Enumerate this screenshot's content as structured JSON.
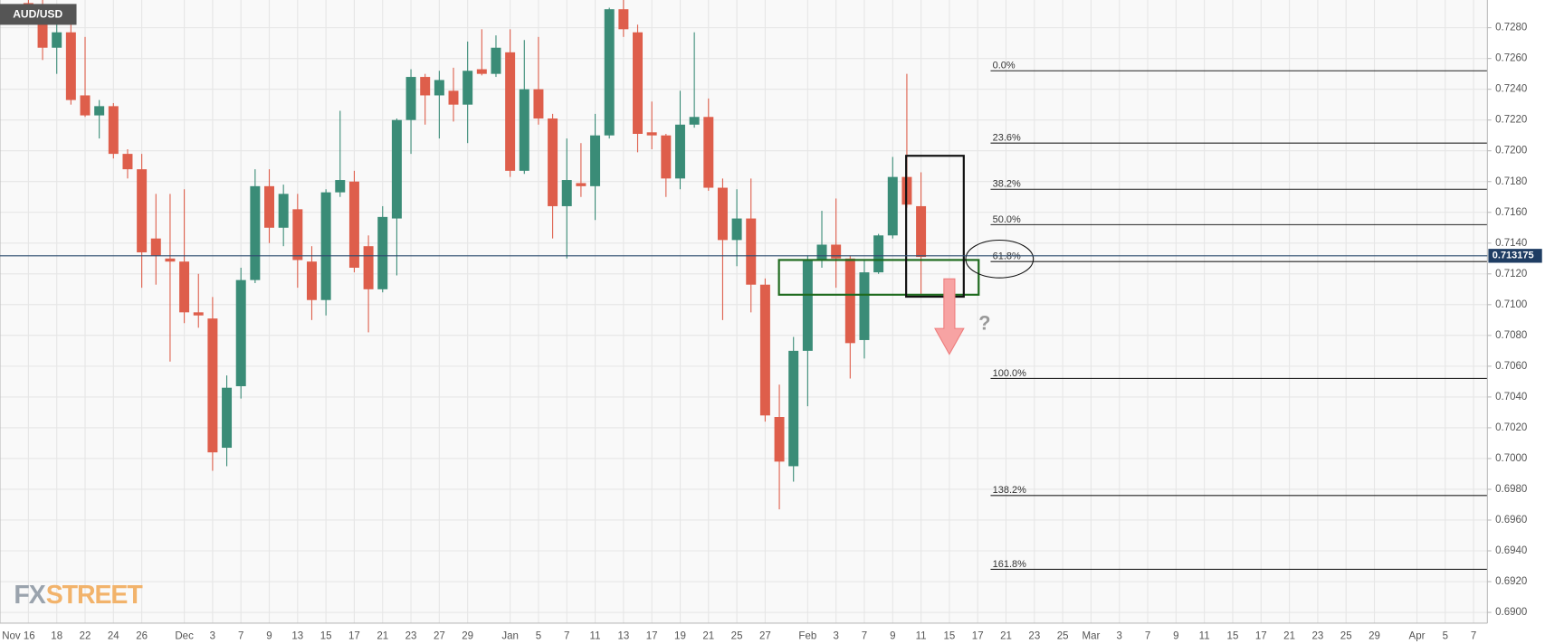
{
  "chart_data": {
    "type": "candlestick",
    "symbol_label": "AUD/USD",
    "logo": [
      "FX",
      "STREET"
    ],
    "annotations": [
      "?"
    ],
    "last_price": 0.713175,
    "up_color": "#3a8c77",
    "down_color": "#de5e4b",
    "grid": true,
    "categories": [
      "Nov 16",
      null,
      "18",
      null,
      "22",
      null,
      "24",
      null,
      "26",
      null,
      null,
      "Dec",
      null,
      "3",
      null,
      "7",
      null,
      "9",
      null,
      "13",
      null,
      "15",
      null,
      "17",
      null,
      "21",
      null,
      "23",
      null,
      "27",
      null,
      "29",
      null,
      null,
      "Jan",
      null,
      "5",
      null,
      "7",
      null,
      "11",
      null,
      "13",
      null,
      "17",
      null,
      "19",
      null,
      "21",
      null,
      "25",
      null,
      "27",
      null,
      null,
      "Feb",
      null,
      "3",
      null,
      "7",
      null,
      "9",
      null,
      "11",
      null,
      "15",
      null,
      "17",
      null,
      "21",
      null,
      "23",
      null,
      "25",
      null,
      "Mar",
      null,
      "3",
      null,
      "7",
      null,
      "9",
      null,
      "11",
      null,
      "15",
      null,
      "17",
      null,
      "21",
      null,
      "23",
      null,
      "25",
      null,
      "29",
      null,
      null,
      "Apr",
      null,
      "5",
      null,
      "7"
    ],
    "series": [
      {
        "name": "AUD/USD",
        "open": [
          0.7296,
          0.7293,
          0.7267,
          0.7277,
          0.7236,
          0.7223,
          0.7229,
          0.7198,
          0.7188,
          0.7143,
          0.713,
          0.7128,
          0.7095,
          0.7091,
          0.7007,
          0.7047,
          0.7116,
          0.7177,
          0.715,
          0.7162,
          0.7128,
          0.7103,
          0.7173,
          0.718,
          0.7138,
          0.711,
          0.7156,
          0.722,
          0.7248,
          0.7236,
          0.7239,
          0.723,
          0.7253,
          0.725,
          0.7264,
          0.7187,
          0.724,
          0.7221,
          0.7164,
          0.7179,
          0.7177,
          0.721,
          0.7292,
          0.7277,
          0.7212,
          0.721,
          0.7182,
          0.7217,
          0.7222,
          0.7176,
          0.7142,
          0.7156,
          0.7113,
          0.7027,
          0.6995,
          0.707,
          0.7129,
          0.7139,
          0.713,
          0.7077,
          0.7121,
          0.7145,
          0.7183,
          0.7164,
          null,
          null,
          null,
          null,
          null,
          null,
          null,
          null,
          null,
          null,
          null,
          null,
          null,
          null,
          null,
          null,
          null,
          null,
          null,
          null,
          null,
          null,
          null,
          null,
          null,
          null,
          null,
          null,
          null,
          null,
          null,
          null,
          null,
          null,
          null,
          null,
          null,
          null,
          null
        ],
        "high": [
          0.7298,
          0.7298,
          0.7286,
          0.7285,
          0.7274,
          0.7233,
          0.7231,
          0.7201,
          0.7198,
          0.7172,
          0.7172,
          0.7175,
          0.712,
          0.7105,
          0.7054,
          0.7124,
          0.7188,
          0.7188,
          0.7178,
          0.7172,
          0.7138,
          0.7175,
          0.7226,
          0.7187,
          0.7145,
          0.7164,
          0.7221,
          0.7253,
          0.725,
          0.7252,
          0.7254,
          0.7271,
          0.7279,
          0.7275,
          0.7279,
          0.7272,
          0.7274,
          0.7224,
          0.7208,
          0.7205,
          0.7224,
          0.7293,
          0.7298,
          0.7282,
          0.7232,
          0.7211,
          0.7239,
          0.7277,
          0.7234,
          0.7182,
          0.7175,
          0.7182,
          0.7117,
          0.7048,
          0.7079,
          0.7132,
          0.7161,
          0.7169,
          0.7132,
          0.7129,
          0.7146,
          0.7196,
          0.725,
          0.7186,
          null,
          null,
          null,
          null,
          null,
          null,
          null,
          null,
          null,
          null,
          null,
          null,
          null,
          null,
          null,
          null,
          null,
          null,
          null,
          null,
          null,
          null,
          null,
          null,
          null,
          null,
          null,
          null,
          null,
          null,
          null,
          null,
          null,
          null,
          null,
          null,
          null,
          null,
          null
        ],
        "low": [
          0.7288,
          0.7259,
          0.725,
          0.723,
          0.7222,
          0.7208,
          0.7195,
          0.7182,
          0.7111,
          0.7113,
          0.7063,
          0.7088,
          0.7085,
          0.6992,
          0.6995,
          0.7039,
          0.7114,
          0.714,
          0.7138,
          0.7111,
          0.709,
          0.7093,
          0.717,
          0.7121,
          0.7082,
          0.7108,
          0.7119,
          0.7198,
          0.7217,
          0.7208,
          0.7219,
          0.7205,
          0.7249,
          0.7248,
          0.7183,
          0.7185,
          0.7217,
          0.7143,
          0.713,
          0.717,
          0.7155,
          0.7208,
          0.7274,
          0.7199,
          0.7201,
          0.717,
          0.7175,
          0.7215,
          0.7174,
          0.709,
          0.7125,
          0.7095,
          0.7024,
          0.6967,
          0.6985,
          0.7034,
          0.7124,
          0.7111,
          0.7052,
          0.7065,
          0.712,
          0.7143,
          0.7163,
          0.7107,
          null,
          null,
          null,
          null,
          null,
          null,
          null,
          null,
          null,
          null,
          null,
          null,
          null,
          null,
          null,
          null,
          null,
          null,
          null,
          null,
          null,
          null,
          null,
          null,
          null,
          null,
          null,
          null,
          null,
          null,
          null,
          null,
          null,
          null,
          null,
          null,
          null,
          null,
          null
        ],
        "close": [
          0.7292,
          0.7267,
          0.7277,
          0.7233,
          0.7223,
          0.7229,
          0.7198,
          0.7188,
          0.7134,
          0.7132,
          0.7128,
          0.7095,
          0.7093,
          0.7004,
          0.7046,
          0.7116,
          0.7177,
          0.715,
          0.7172,
          0.7129,
          0.7103,
          0.7173,
          0.7181,
          0.7124,
          0.711,
          0.7157,
          0.722,
          0.7248,
          0.7236,
          0.7246,
          0.723,
          0.7252,
          0.725,
          0.7267,
          0.7187,
          0.724,
          0.7221,
          0.7164,
          0.7181,
          0.7177,
          0.721,
          0.7292,
          0.7279,
          0.7211,
          0.721,
          0.7182,
          0.7217,
          0.7222,
          0.7176,
          0.7142,
          0.7156,
          0.7113,
          0.7028,
          0.6998,
          0.707,
          0.7129,
          0.7139,
          0.713,
          0.7075,
          0.7121,
          0.7145,
          0.7183,
          0.7165,
          0.7131,
          null,
          null,
          null,
          null,
          null,
          null,
          null,
          null,
          null,
          null,
          null,
          null,
          null,
          null,
          null,
          null,
          null,
          null,
          null,
          null,
          null,
          null,
          null,
          null,
          null,
          null,
          null,
          null,
          null,
          null,
          null,
          null,
          null,
          null,
          null,
          null,
          null,
          null,
          null
        ]
      }
    ],
    "fibonacci": [
      {
        "value": 0.7252,
        "label": "0.0%"
      },
      {
        "value": 0.7205,
        "label": "23.6%"
      },
      {
        "value": 0.7175,
        "label": "38.2%"
      },
      {
        "value": 0.7152,
        "label": "50.0%"
      },
      {
        "value": 0.7128,
        "label": "61.8%"
      },
      {
        "value": 0.7052,
        "label": "100.0%"
      },
      {
        "value": 0.6976,
        "label": "138.2%"
      },
      {
        "value": 0.6928,
        "label": "161.8%"
      }
    ],
    "ylim": [
      0.6893,
      0.7298
    ],
    "yticks": [
      {
        "value": 0.69,
        "label": "0.6900"
      },
      {
        "value": 0.692,
        "label": "0.6920"
      },
      {
        "value": 0.694,
        "label": "0.6940"
      },
      {
        "value": 0.696,
        "label": "0.6960"
      },
      {
        "value": 0.698,
        "label": "0.6980"
      },
      {
        "value": 0.7,
        "label": "0.7000"
      },
      {
        "value": 0.702,
        "label": "0.7020"
      },
      {
        "value": 0.704,
        "label": "0.7040"
      },
      {
        "value": 0.706,
        "label": "0.7060"
      },
      {
        "value": 0.708,
        "label": "0.7080"
      },
      {
        "value": 0.71,
        "label": "0.7100"
      },
      {
        "value": 0.712,
        "label": "0.7120"
      },
      {
        "value": 0.714,
        "label": "0.7140"
      },
      {
        "value": 0.716,
        "label": "0.7160"
      },
      {
        "value": 0.718,
        "label": "0.7180"
      },
      {
        "value": 0.72,
        "label": "0.7200"
      },
      {
        "value": 0.722,
        "label": "0.7220"
      },
      {
        "value": 0.724,
        "label": "0.7240"
      },
      {
        "value": 0.726,
        "label": "0.7260"
      },
      {
        "value": 0.728,
        "label": "0.7280"
      }
    ]
  }
}
